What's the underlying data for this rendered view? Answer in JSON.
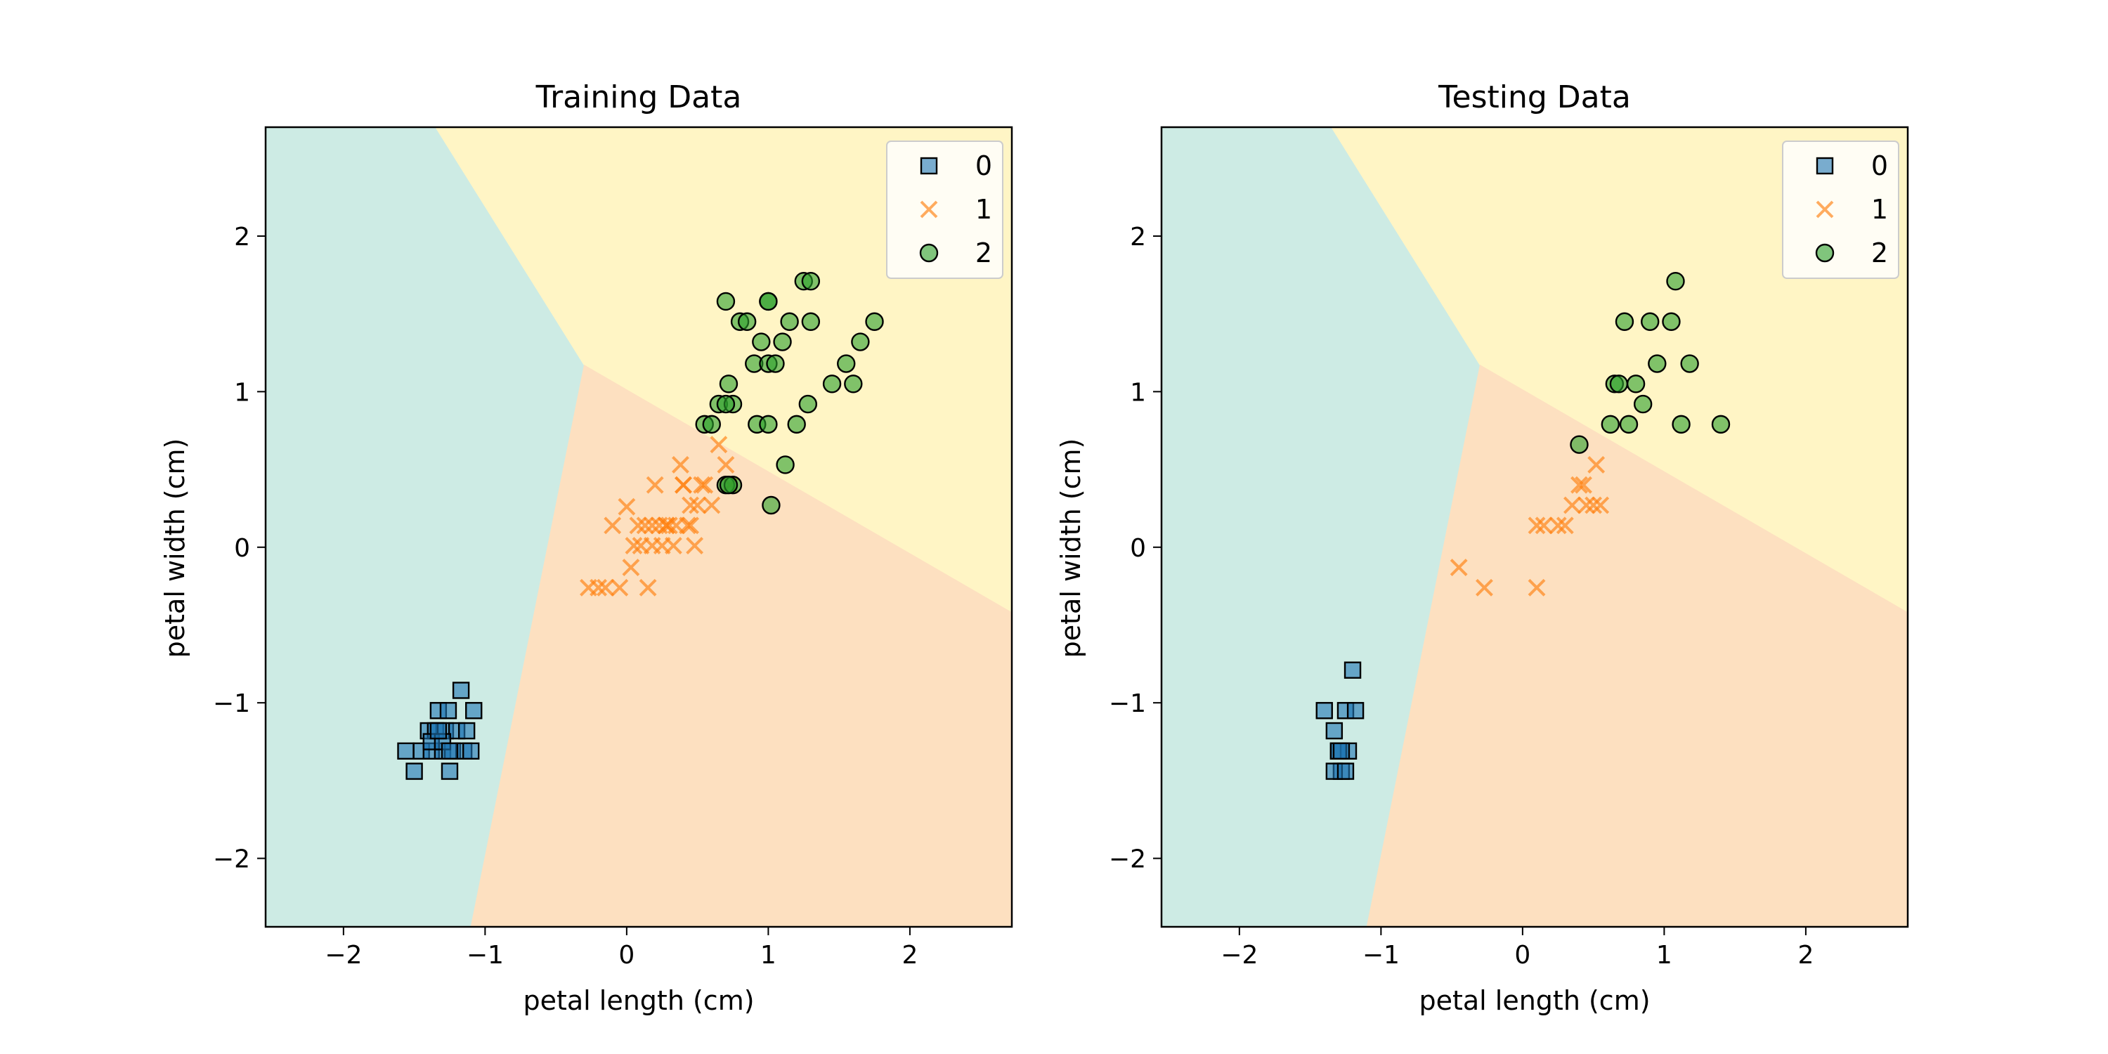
{
  "chart_data": [
    {
      "type": "scatter",
      "title": "Training Data",
      "xlabel": "petal length (cm)",
      "ylabel": "petal width (cm)",
      "xlim": [
        -2.55,
        2.72
      ],
      "ylim": [
        -2.44,
        2.7
      ],
      "xticks": [
        -2,
        -1,
        0,
        1,
        2
      ],
      "yticks": [
        -2,
        -1,
        0,
        1,
        2
      ],
      "grid": false,
      "legend_position": "top-right",
      "decision_regions": [
        {
          "class": "0",
          "color": "#cdebe4",
          "polygon": [
            [
              -2.55,
              2.7
            ],
            [
              -1.35,
              2.7
            ],
            [
              -0.3,
              1.17
            ],
            [
              -1.1,
              -2.44
            ],
            [
              -2.55,
              -2.44
            ]
          ]
        },
        {
          "class": "2",
          "color": "#fff5c5",
          "polygon": [
            [
              -1.35,
              2.7
            ],
            [
              2.72,
              2.7
            ],
            [
              2.72,
              -0.42
            ],
            [
              -0.3,
              1.17
            ]
          ]
        },
        {
          "class": "1",
          "color": "#fde0c0",
          "polygon": [
            [
              -0.3,
              1.17
            ],
            [
              2.72,
              -0.42
            ],
            [
              2.72,
              -2.44
            ],
            [
              -1.1,
              -2.44
            ]
          ]
        }
      ],
      "series": [
        {
          "name": "0",
          "marker": "square",
          "color": "#1f77b4",
          "x": [
            -1.56,
            -1.5,
            -1.45,
            -1.4,
            -1.38,
            -1.35,
            -1.33,
            -1.3,
            -1.28,
            -1.26,
            -1.25,
            -1.23,
            -1.2,
            -1.17,
            -1.15,
            -1.13,
            -1.1,
            -1.08,
            -1.38,
            -1.3,
            -1.25,
            -1.33
          ],
          "y": [
            -1.31,
            -1.44,
            -1.31,
            -1.18,
            -1.31,
            -1.18,
            -1.05,
            -1.31,
            -1.18,
            -1.05,
            -1.44,
            -1.31,
            -1.18,
            -0.92,
            -1.31,
            -1.18,
            -1.31,
            -1.05,
            -1.25,
            -1.25,
            -1.31,
            -1.18
          ]
        },
        {
          "name": "1",
          "marker": "x",
          "color": "#ff7f0e",
          "x": [
            -0.27,
            -0.2,
            -0.15,
            -0.1,
            -0.05,
            0.0,
            0.03,
            0.05,
            0.08,
            0.1,
            0.13,
            0.15,
            0.18,
            0.2,
            0.23,
            0.25,
            0.28,
            0.3,
            0.33,
            0.35,
            0.38,
            0.4,
            0.43,
            0.45,
            0.48,
            0.5,
            0.53,
            0.55,
            0.6,
            0.65,
            0.7,
            0.73,
            0.18,
            0.28,
            0.4,
            0.45
          ],
          "y": [
            -0.26,
            -0.26,
            -0.26,
            0.14,
            -0.26,
            0.26,
            -0.13,
            0.01,
            0.14,
            0.01,
            0.14,
            -0.26,
            0.14,
            0.4,
            0.14,
            0.01,
            0.14,
            0.14,
            0.01,
            0.14,
            0.53,
            0.4,
            0.14,
            0.27,
            0.01,
            0.27,
            0.4,
            0.4,
            0.27,
            0.66,
            0.53,
            0.4,
            0.01,
            0.14,
            0.4,
            0.14
          ]
        },
        {
          "name": "2",
          "marker": "circle",
          "color": "#2ca02c",
          "x": [
            0.55,
            0.6,
            0.65,
            0.7,
            0.7,
            0.72,
            0.75,
            0.75,
            0.8,
            0.85,
            0.9,
            0.92,
            0.95,
            1.0,
            1.0,
            1.0,
            1.02,
            1.05,
            1.1,
            1.12,
            1.15,
            1.2,
            1.25,
            1.28,
            1.3,
            1.3,
            1.45,
            1.55,
            1.6,
            1.65,
            1.75,
            0.7,
            0.72,
            1.0
          ],
          "y": [
            0.79,
            0.79,
            0.92,
            1.58,
            0.4,
            1.05,
            0.92,
            0.4,
            1.45,
            1.45,
            1.18,
            0.79,
            1.32,
            1.58,
            0.79,
            1.18,
            0.27,
            1.18,
            1.32,
            0.53,
            1.45,
            0.79,
            1.71,
            0.92,
            1.71,
            1.45,
            1.05,
            1.18,
            1.05,
            1.32,
            1.45,
            0.92,
            0.4,
            1.58
          ]
        }
      ]
    },
    {
      "type": "scatter",
      "title": "Testing Data",
      "xlabel": "petal length (cm)",
      "ylabel": "petal width (cm)",
      "xlim": [
        -2.55,
        2.72
      ],
      "ylim": [
        -2.44,
        2.7
      ],
      "xticks": [
        -2,
        -1,
        0,
        1,
        2
      ],
      "yticks": [
        -2,
        -1,
        0,
        1,
        2
      ],
      "grid": false,
      "legend_position": "top-right",
      "decision_regions": [
        {
          "class": "0",
          "color": "#cdebe4",
          "polygon": [
            [
              -2.55,
              2.7
            ],
            [
              -1.35,
              2.7
            ],
            [
              -0.3,
              1.17
            ],
            [
              -1.1,
              -2.44
            ],
            [
              -2.55,
              -2.44
            ]
          ]
        },
        {
          "class": "2",
          "color": "#fff5c5",
          "polygon": [
            [
              -1.35,
              2.7
            ],
            [
              2.72,
              2.7
            ],
            [
              2.72,
              -0.42
            ],
            [
              -0.3,
              1.17
            ]
          ]
        },
        {
          "class": "1",
          "color": "#fde0c0",
          "polygon": [
            [
              -0.3,
              1.17
            ],
            [
              2.72,
              -0.42
            ],
            [
              2.72,
              -2.44
            ],
            [
              -1.1,
              -2.44
            ]
          ]
        }
      ],
      "series": [
        {
          "name": "0",
          "marker": "square",
          "color": "#1f77b4",
          "x": [
            -1.4,
            -1.33,
            -1.3,
            -1.28,
            -1.25,
            -1.23,
            -1.2,
            -1.18,
            -1.33,
            -1.3,
            -1.28,
            -1.25
          ],
          "y": [
            -1.05,
            -1.18,
            -1.31,
            -1.44,
            -1.05,
            -1.31,
            -0.79,
            -1.05,
            -1.44,
            -1.31,
            -1.31,
            -1.44
          ]
        },
        {
          "name": "1",
          "marker": "x",
          "color": "#ff7f0e",
          "x": [
            -0.45,
            -0.27,
            0.1,
            0.1,
            0.15,
            0.25,
            0.3,
            0.35,
            0.4,
            0.43,
            0.45,
            0.5,
            0.52,
            0.55
          ],
          "y": [
            -0.13,
            -0.26,
            0.14,
            -0.26,
            0.14,
            0.14,
            0.14,
            0.27,
            0.4,
            0.4,
            0.27,
            0.27,
            0.53,
            0.27
          ]
        },
        {
          "name": "2",
          "marker": "circle",
          "color": "#2ca02c",
          "x": [
            0.4,
            0.62,
            0.65,
            0.68,
            0.72,
            0.75,
            0.8,
            0.85,
            0.9,
            0.95,
            1.05,
            1.08,
            1.12,
            1.18,
            1.4
          ],
          "y": [
            0.66,
            0.79,
            1.05,
            1.05,
            1.45,
            0.79,
            1.05,
            0.92,
            1.45,
            1.18,
            1.45,
            1.71,
            0.79,
            1.18,
            0.79
          ]
        }
      ]
    }
  ]
}
